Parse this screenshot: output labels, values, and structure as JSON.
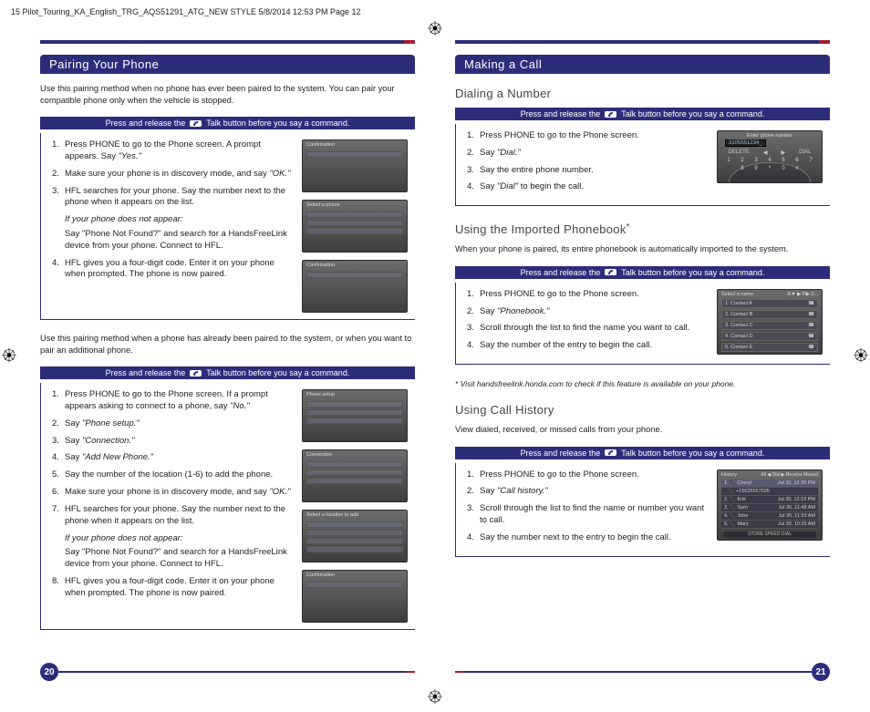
{
  "meta": {
    "slugline": "15 Pilot_Touring_KA_English_TRG_AQS51291_ATG_NEW STYLE  5/8/2014  12:53 PM  Page 12"
  },
  "colors": {
    "brand": "#2c2d7a",
    "accent": "#a31f34",
    "text": "#222222",
    "shot_bg_top": "#6c6c6c",
    "shot_bg_bot": "#3e3e3e"
  },
  "talkbar": {
    "pre": "Press and release the",
    "post": "Talk button before you say a command.",
    "icon_label": "Talk"
  },
  "left": {
    "pagenum": "20",
    "section_title": "Pairing Your Phone",
    "intro1": "Use this pairing method when no phone has ever been paired to the system.  You can pair your compatible phone only when the vehicle is stopped.",
    "steps1": [
      {
        "html": "Press PHONE to go to the Phone screen. A prompt appears. Say <span class='em'>\"Yes.\"</span>"
      },
      {
        "html": "Make sure your phone is in discovery mode, and say <span class='em'>\"OK.\"</span>"
      },
      {
        "html": "HFL searches for your phone. Say the number next to the phone when it appears on the list."
      },
      {
        "note": "If your phone does not appear:"
      },
      {
        "sub": "Say \"Phone Not Found?\" and search for a HandsFreeLink device from your phone. Connect to HFL."
      },
      {
        "html": "HFL gives you a four-digit code. Enter it on your phone when prompted.  The phone is now paired."
      }
    ],
    "intro2": "Use this pairing method when a phone has already been paired to the system, or when you want to pair an additional phone.",
    "steps2": [
      {
        "html": "Press PHONE to go to the Phone screen. If a prompt appears asking to connect to a phone, say <span class='em'>\"No.\"</span>"
      },
      {
        "html": "Say <span class='em'>\"Phone setup.\"</span>"
      },
      {
        "html": "Say <span class='em'>\"Connection.\"</span>"
      },
      {
        "html": "Say <span class='em'>\"Add New Phone.\"</span>"
      },
      {
        "html": "Say the number of the location (1-6) to add the phone."
      },
      {
        "html": "Make sure your phone is in discovery mode, and say <span class='em'>\"OK.\"</span>"
      },
      {
        "html": "HFL searches for your phone. Say the number next to the phone when it appears on the list."
      },
      {
        "note": "If your phone does not appear:"
      },
      {
        "sub": "Say \"Phone Not Found?\" and search for a HandsFreeLink device from your phone. Connect to HFL."
      },
      {
        "html": "HFL gives you a four-digit code. Enter it on your phone when prompted.  The phone is now paired."
      }
    ],
    "shots1": [
      "Confirmation",
      "Select a phone",
      "Confirmation"
    ],
    "shots2": [
      "Phone setup",
      "Connection",
      "Select a location to add",
      "Confirmation"
    ]
  },
  "right": {
    "pagenum": "21",
    "section_title": "Making a Call",
    "dial": {
      "heading": "Dialing a Number",
      "steps": [
        {
          "html": "Press PHONE to go to the Phone screen."
        },
        {
          "html": "Say <span class='em'>\"Dial.\"</span>"
        },
        {
          "html": "Say the entire phone number."
        },
        {
          "html": "Say <span class='em'>\"Dial\"</span> to begin the call."
        }
      ],
      "shot": {
        "title": "Enter phone number",
        "entry": "3105551234_",
        "btns": [
          "DELETE",
          "◀",
          "▶",
          "DIAL"
        ],
        "nums": [
          "1",
          "2",
          "3",
          "4",
          "5",
          "6",
          "7",
          "8",
          "9",
          "*",
          "0",
          "#"
        ]
      }
    },
    "phonebook": {
      "heading": "Using the Imported Phonebook",
      "ast": "*",
      "intro": "When your phone is paired, its entire phonebook is automatically imported to the system.",
      "steps": [
        {
          "html": "Press PHONE to go to the Phone screen."
        },
        {
          "html": "Say <span class='em'>\"Phonebook.\"</span>"
        },
        {
          "html": "Scroll through the list to find the name you want to call."
        },
        {
          "html": "Say the number of the entry to begin the call."
        }
      ],
      "shot": {
        "title": "Select a name",
        "hdr": [
          "A▼",
          "▶",
          "P▶",
          "0..."
        ],
        "rows": [
          "Contact A",
          "Contact B",
          "Contact C",
          "Contact D",
          "Contact E",
          "Contact AA"
        ]
      },
      "footnote": "* Visit handsfreelink.honda.com to check if this feature is available on your phone."
    },
    "hist": {
      "heading": "Using Call History",
      "intro": "View dialed, received, or missed calls from your phone.",
      "steps": [
        {
          "html": "Press PHONE to go to the Phone screen."
        },
        {
          "html": "Say <span class='em'>\"Call history.\"</span>"
        },
        {
          "html": "Scroll through the list to find the name or number you want to call."
        },
        {
          "html": "Say the number next to the entry to begin the call."
        }
      ],
      "shot": {
        "title": "History",
        "tabs": [
          "All",
          "◀  Dial",
          "▶ Receive",
          "Missed"
        ],
        "rows": [
          {
            "n": "1",
            "name": "Cheryl",
            "d": "Jul 30, 12:39 PM",
            "sel": true
          },
          {
            "n": "",
            "name": "+15625557595",
            "d": ""
          },
          {
            "n": "2",
            "name": "Erik",
            "d": "Jul 30, 12:19 PM"
          },
          {
            "n": "3",
            "name": "Sam",
            "d": "Jul 30, 11:48 AM"
          },
          {
            "n": "4",
            "name": "John",
            "d": "Jul 30, 11:33 AM"
          },
          {
            "n": "5",
            "name": "Mary",
            "d": "Jul 30, 10:25 AM"
          }
        ],
        "footer": "STORE SPEED DIAL"
      }
    }
  }
}
